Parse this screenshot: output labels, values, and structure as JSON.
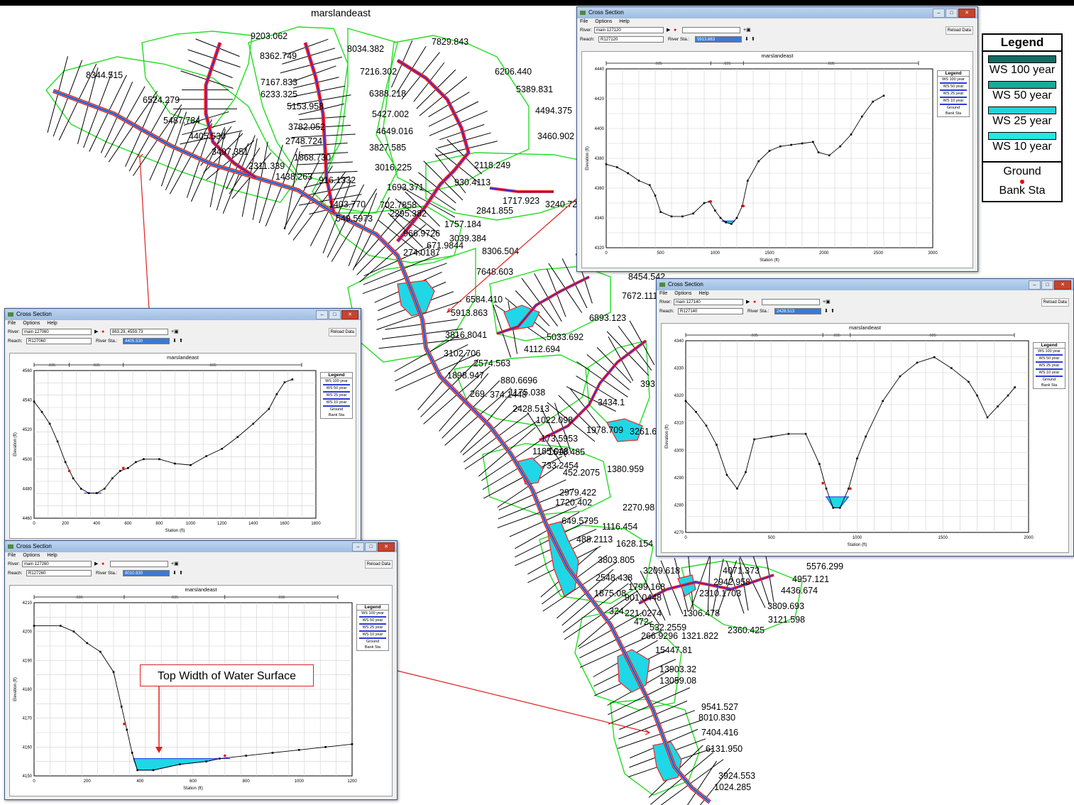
{
  "map": {
    "title": "marslandeast",
    "labels": [
      "8344.515",
      "6524.279",
      "5487.784",
      "4405.530",
      "3497.351",
      "9203.062",
      "8362.749",
      "7167.833",
      "6233.325",
      "5153.958",
      "3782.052",
      "2748.724",
      "1868.730",
      "2311.339",
      "1438.263",
      "916.1332",
      "8034.382",
      "7216.302",
      "6388.218",
      "5427.002",
      "4649.016",
      "3827.585",
      "3016.225",
      "1693.371",
      "930.4113",
      "7829.843",
      "6206.440",
      "5389.831",
      "4494.375",
      "3460.902",
      "2118.249",
      "1717.923",
      "3240.72",
      "1403.770",
      "702.7858",
      "2295.382",
      "2841.855",
      "549.5973",
      "1757.184",
      "966.9726",
      "3039.384",
      "671.9844",
      "274.0187",
      "8306.504",
      "7648.603",
      "6584.410",
      "5913.863",
      "8454.542",
      "7672.111",
      "6893.123",
      "5033.692",
      "4112.694",
      "3816.8041",
      "3102.706",
      "2574.563",
      "1898.947",
      "880.6696",
      "269.",
      "374.1448",
      "1175.038",
      "2428.513",
      "1022.098",
      "1978.709",
      "173.5953",
      "1185.048",
      "1618.485",
      "733.2454",
      "452.2075",
      "1380.959",
      "2979.422",
      "1720.402",
      "2270.98",
      "649.5795",
      "1116.454",
      "488.2113",
      "1628.154",
      "3803.805",
      "3209.618",
      "4071.373",
      "5576.299",
      "2548.438",
      "1799.168",
      "2942.958",
      "4957.121",
      "1875.08",
      "901.0448",
      "2310.1703",
      "4436.674",
      "324",
      "221.0274",
      "1306.478",
      "3809.693",
      "472.",
      "532.2559",
      "3121.598",
      "266.9296",
      "1321.822",
      "2360.425",
      "15447.81",
      "13903.32",
      "13059.08",
      "9541.527",
      "8010.830",
      "7404.416",
      "6131.950",
      "3924.553",
      "1024.285",
      "3434.1",
      "393",
      "3261.6"
    ]
  },
  "legend": {
    "title": "Legend",
    "items": [
      {
        "label": "WS 100 year",
        "color": "#0e6e62"
      },
      {
        "label": "WS 50 year",
        "color": "#17a99a"
      },
      {
        "label": "WS 25 year",
        "color": "#24d3d3"
      },
      {
        "label": "WS 10 year",
        "color": "#29e6e0"
      }
    ],
    "ground_label": "Ground",
    "bank_label": "Bank Sta"
  },
  "annotation": "Top Width of Water Surface",
  "windows": [
    {
      "title": "Cross Section",
      "menu": [
        "File",
        "Options",
        "Help"
      ],
      "river_label": "River:",
      "river_value": "main 127120",
      "reach_label": "Reach:",
      "reach_value": "R127120",
      "riversta_label": "River Sta.:",
      "riversta_value": "5913.863",
      "coord_value": "",
      "reload": "Reload Data",
      "plot_title": "marslandeast",
      "n_values": [
        ".035",
        ".035",
        ".035"
      ],
      "xlabel": "Station (ft)",
      "ylabel": "Elevation (ft)",
      "yticks": [
        "4440",
        "4420",
        "4400",
        "4380",
        "4360",
        "4340",
        "4320"
      ],
      "xticks": [
        "0",
        "500",
        "1000",
        "1500",
        "2000",
        "2500",
        "3000"
      ],
      "legend": {
        "title": "Legend",
        "entries": [
          "WS 100 year",
          "WS 50 year",
          "WS 25 year",
          "WS 10 year",
          "Ground",
          "Bank Sta"
        ]
      }
    },
    {
      "title": "Cross Section",
      "menu": [
        "File",
        "Options",
        "Help"
      ],
      "river_label": "River:",
      "river_value": "main 127140",
      "reach_label": "Reach:",
      "reach_value": "R127140",
      "riversta_label": "River Sta.:",
      "riversta_value": "2428.513",
      "coord_value": "",
      "reload": "Reload Data",
      "plot_title": "marslandeast",
      "n_values": [
        ".035",
        ".035",
        ".035"
      ],
      "xlabel": "Station (ft)",
      "ylabel": "Elevation (ft)",
      "yticks": [
        "4340",
        "4330",
        "4320",
        "4310",
        "4300",
        "4290",
        "4280",
        "4270"
      ],
      "xticks": [
        "0",
        "500",
        "1000",
        "1500",
        "2000"
      ],
      "legend": {
        "title": "Legend",
        "entries": [
          "WS 100 year",
          "WS 50 year",
          "WS 25 year",
          "WS 10 year",
          "Ground",
          "Bank Sta"
        ]
      }
    },
    {
      "title": "Cross Section",
      "menu": [
        "File",
        "Options",
        "Help"
      ],
      "river_label": "River:",
      "river_value": "main 127060",
      "reach_label": "Reach:",
      "reach_value": "R127060",
      "riversta_label": "River Sta.:",
      "riversta_value": "4405.530",
      "coord_value": "863.29, 4559.73",
      "reload": "Reload Data",
      "plot_title": "marslandeast",
      "n_values": [
        ".035",
        ".035",
        ".035"
      ],
      "xlabel": "Station (ft)",
      "ylabel": "Elevation (ft)",
      "yticks": [
        "4560",
        "4540",
        "4520",
        "4500",
        "4480",
        "4460"
      ],
      "xticks": [
        "0",
        "200",
        "400",
        "600",
        "800",
        "1000",
        "1200",
        "1400",
        "1600",
        "1800"
      ],
      "legend": {
        "title": "Legend",
        "entries": [
          "WS 100 year",
          "WS 50 year",
          "WS 25 year",
          "WS 10 year",
          "Ground",
          "Bank Sta"
        ]
      }
    },
    {
      "title": "Cross Section",
      "menu": [
        "File",
        "Options",
        "Help"
      ],
      "river_label": "River:",
      "river_value": "main 127260",
      "reach_label": "Reach:",
      "reach_value": "R127260",
      "riversta_label": "River Sta.:",
      "riversta_value": "8010.830",
      "coord_value": "",
      "reload": "Reload Data",
      "plot_title": "marslandeast",
      "n_values": [
        ".035",
        ".035",
        ".035"
      ],
      "xlabel": "Station (ft)",
      "ylabel": "Elevation (ft)",
      "yticks": [
        "4210",
        "4200",
        "4190",
        "4180",
        "4170",
        "4160",
        "4150"
      ],
      "xticks": [
        "0",
        "200",
        "400",
        "600",
        "800",
        "1000",
        "1200"
      ],
      "legend": {
        "title": "Legend",
        "entries": [
          "WS 100 year",
          "WS 50 year",
          "WS 25 year",
          "WS 10 year",
          "Ground",
          "Bank Sta"
        ]
      }
    }
  ]
}
